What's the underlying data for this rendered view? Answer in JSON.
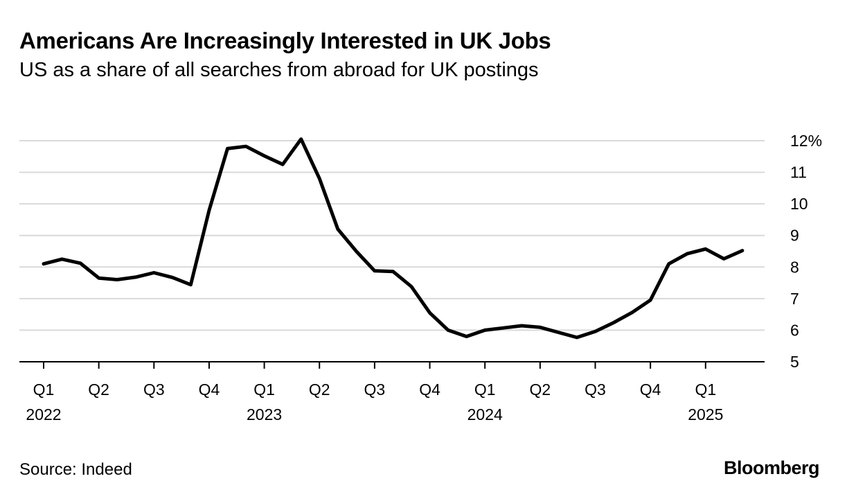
{
  "chart_data": {
    "type": "line",
    "title": "Americans Are Increasingly Interested in UK Jobs",
    "subtitle": "US as a share of all searches from abroad for UK postings",
    "source": "Source: Indeed",
    "brand": "Bloomberg",
    "xlabel": "",
    "ylabel": "",
    "ylim": [
      5,
      12
    ],
    "y_ticks": [
      "5",
      "6",
      "7",
      "8",
      "9",
      "10",
      "11",
      "12%"
    ],
    "x_ticks": [
      {
        "quarter": "Q1",
        "year": "2022"
      },
      {
        "quarter": "Q2",
        "year": ""
      },
      {
        "quarter": "Q3",
        "year": ""
      },
      {
        "quarter": "Q4",
        "year": ""
      },
      {
        "quarter": "Q1",
        "year": "2023"
      },
      {
        "quarter": "Q2",
        "year": ""
      },
      {
        "quarter": "Q3",
        "year": ""
      },
      {
        "quarter": "Q4",
        "year": ""
      },
      {
        "quarter": "Q1",
        "year": "2024"
      },
      {
        "quarter": "Q2",
        "year": ""
      },
      {
        "quarter": "Q3",
        "year": ""
      },
      {
        "quarter": "Q4",
        "year": ""
      },
      {
        "quarter": "Q1",
        "year": "2025"
      }
    ],
    "grid": true,
    "line_color": "#000000",
    "grid_color": "#d9d9d9",
    "x": [
      "2022-01",
      "2022-02",
      "2022-03",
      "2022-04",
      "2022-05",
      "2022-06",
      "2022-07",
      "2022-08",
      "2022-09",
      "2022-10",
      "2022-11",
      "2022-12",
      "2023-01",
      "2023-02",
      "2023-03",
      "2023-04",
      "2023-05",
      "2023-06",
      "2023-07",
      "2023-08",
      "2023-09",
      "2023-10",
      "2023-11",
      "2023-12",
      "2024-01",
      "2024-02",
      "2024-03",
      "2024-04",
      "2024-05",
      "2024-06",
      "2024-07",
      "2024-08",
      "2024-09",
      "2024-10",
      "2024-11",
      "2024-12",
      "2025-01",
      "2025-02",
      "2025-03"
    ],
    "series": [
      {
        "values": [
          8.1,
          8.25,
          8.12,
          7.65,
          7.6,
          7.68,
          7.82,
          7.67,
          7.44,
          9.8,
          11.75,
          11.82,
          11.52,
          11.25,
          12.05,
          10.8,
          9.2,
          8.5,
          7.88,
          7.86,
          7.38,
          6.55,
          6.0,
          5.8,
          6.0,
          6.07,
          6.14,
          6.09,
          5.93,
          5.77,
          5.96,
          6.24,
          6.56,
          6.95,
          8.1,
          8.42,
          8.57,
          8.26,
          8.52
        ]
      }
    ]
  }
}
